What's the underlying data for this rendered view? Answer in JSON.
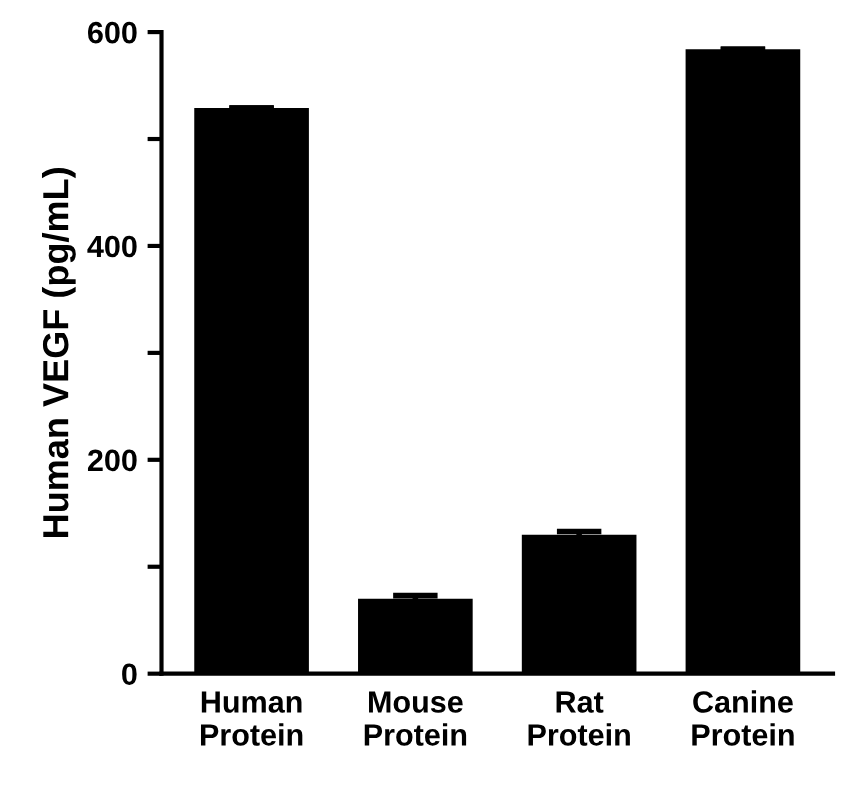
{
  "chart_data": {
    "type": "bar",
    "categories": [
      "Human\nProtein",
      "Mouse\nProtein",
      "Rat\nProtein",
      "Canine\nProtein"
    ],
    "values": [
      529,
      70,
      130,
      584
    ],
    "errors": [
      null,
      3,
      3,
      null
    ],
    "color": "#000000",
    "ylabel": "Human VEGF (pg/mL)",
    "ylim": [
      0,
      600
    ],
    "yticks": [
      0,
      {
        "value": 100,
        "label": null
      },
      200,
      {
        "value": 300,
        "label": null
      },
      400,
      {
        "value": 500,
        "label": null
      },
      600
    ],
    "grid": false
  }
}
